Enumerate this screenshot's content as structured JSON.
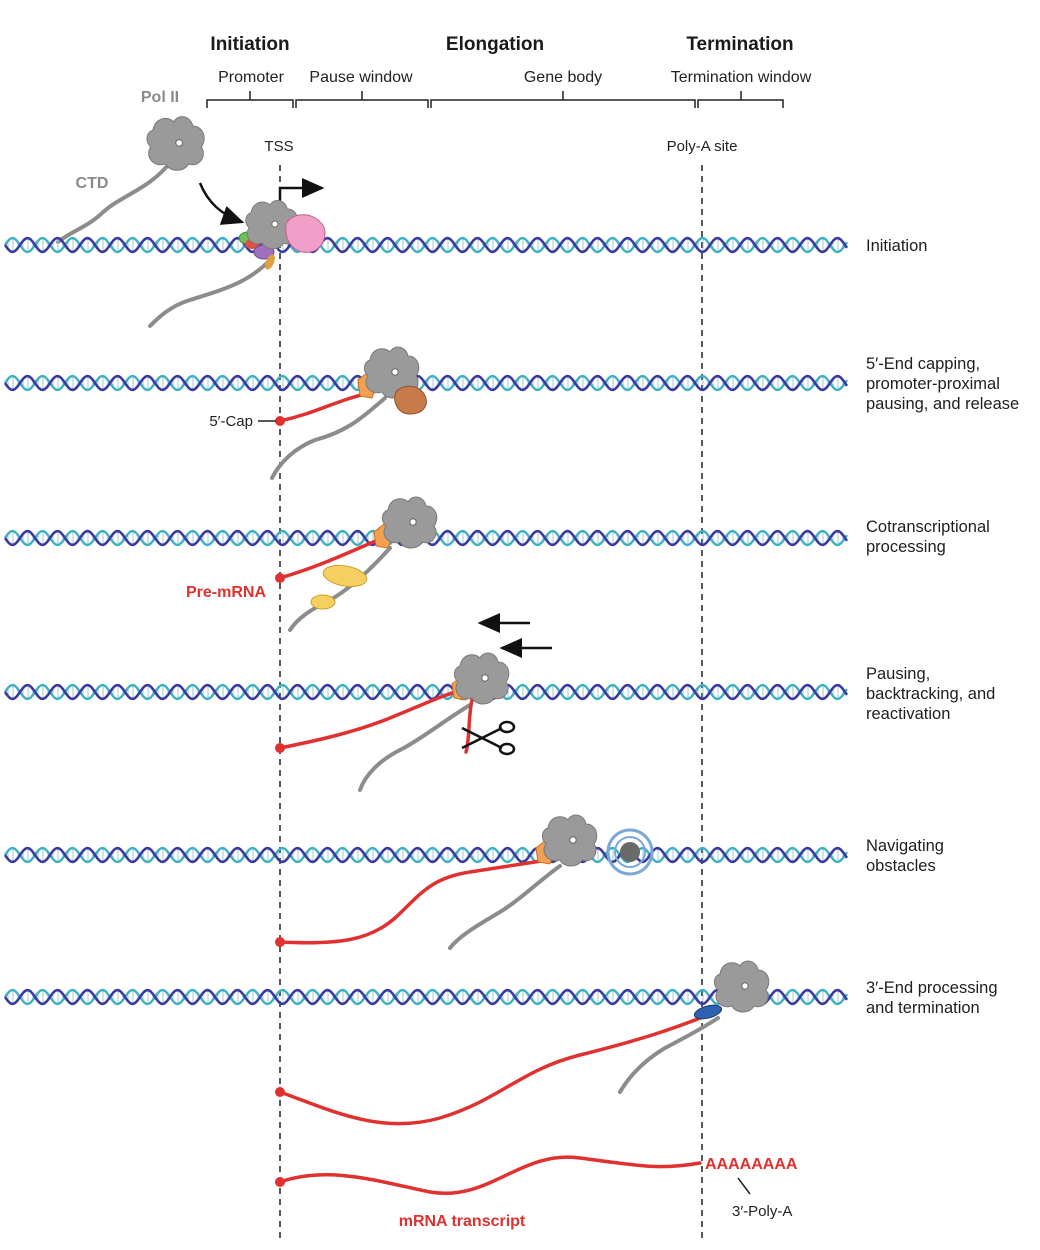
{
  "phases": {
    "initiation": "Initiation",
    "elongation": "Elongation",
    "termination": "Termination"
  },
  "regions": {
    "promoter": "Promoter",
    "pause_window": "Pause window",
    "gene_body": "Gene body",
    "termination_window": "Termination window"
  },
  "sites": {
    "tss": "TSS",
    "polya_site": "Poly-A site"
  },
  "labels": {
    "pol2": "Pol II",
    "ctd": "CTD",
    "cap": "5′-Cap",
    "premrna": "Pre-mRNA",
    "polya_tail": "AAAAAAAA",
    "polya_label": "3′-Poly-A",
    "mrna": "mRNA transcript"
  },
  "steps": [
    {
      "lines": [
        "Initiation"
      ]
    },
    {
      "lines": [
        "5′-End capping,",
        "promoter-proximal",
        "pausing, and release"
      ]
    },
    {
      "lines": [
        "Cotranscriptional",
        "processing"
      ]
    },
    {
      "lines": [
        "Pausing,",
        "backtracking, and",
        "reactivation"
      ]
    },
    {
      "lines": [
        "Navigating",
        "obstacles"
      ]
    },
    {
      "lines": [
        "3′-End processing",
        "and termination"
      ]
    }
  ],
  "colors": {
    "dna_strand_a": "#3a3aa0",
    "dna_strand_b": "#3fb0c0",
    "polymerase": "#9a9a9a",
    "rna": "#e03030",
    "ctd": "#8c8c8c",
    "capping": "#f3a050",
    "splicing": "#f5d060",
    "pink_factor": "#f0a0c8",
    "brown_factor": "#c87a48",
    "cpsf": "#3060b0"
  }
}
